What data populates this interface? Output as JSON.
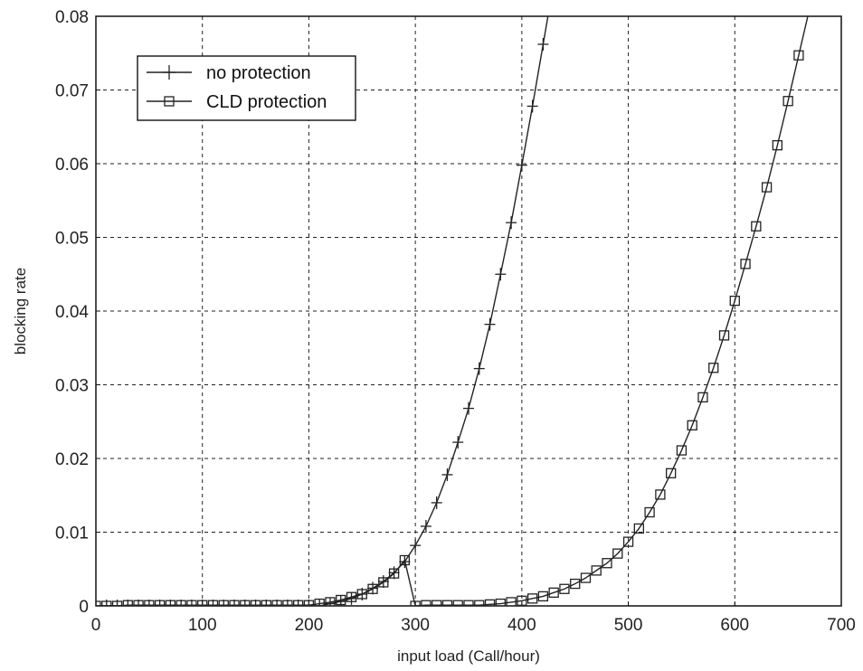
{
  "chart_data": {
    "type": "line",
    "title": "",
    "xlabel": "input load (Call/hour)",
    "ylabel": "blocking rate",
    "xlim": [
      0,
      700
    ],
    "ylim": [
      0,
      0.08
    ],
    "x_ticks": [
      "0",
      "100",
      "200",
      "300",
      "400",
      "500",
      "600",
      "700"
    ],
    "y_ticks": [
      "0",
      "0.01",
      "0.02",
      "0.03",
      "0.04",
      "0.05",
      "0.06",
      "0.07",
      "0.08"
    ],
    "grid": true,
    "legend_position": "top-left",
    "series": [
      {
        "name": "no protection",
        "marker": "plus",
        "x": [
          0,
          10,
          20,
          30,
          40,
          50,
          60,
          70,
          80,
          90,
          100,
          110,
          120,
          130,
          140,
          150,
          160,
          170,
          180,
          190,
          200,
          210,
          220,
          230,
          240,
          250,
          260,
          270,
          280,
          290,
          300,
          310,
          320,
          330,
          340,
          350,
          360,
          370,
          380,
          390,
          400,
          410,
          420
        ],
        "y": [
          0,
          0,
          0,
          0,
          0,
          0,
          0,
          0,
          0,
          0,
          0,
          0,
          0,
          0,
          0,
          0,
          0,
          0,
          0,
          0,
          0,
          0,
          0.0003,
          0.0006,
          0.001,
          0.0016,
          0.0024,
          0.0033,
          0.0045,
          0.006,
          0.0082,
          0.0108,
          0.014,
          0.0178,
          0.0222,
          0.0268,
          0.0322,
          0.0382,
          0.045,
          0.052,
          0.0598,
          0.0678,
          0.0762
        ]
      },
      {
        "name": "CLD protection",
        "marker": "square",
        "x": [
          0,
          10,
          20,
          30,
          40,
          50,
          60,
          70,
          80,
          90,
          100,
          110,
          120,
          130,
          140,
          150,
          160,
          170,
          180,
          190,
          200,
          210,
          220,
          230,
          240,
          250,
          260,
          270,
          280,
          290,
          300,
          310,
          320,
          330,
          340,
          350,
          360,
          370,
          380,
          390,
          400,
          410,
          420,
          430,
          440,
          450,
          460,
          470,
          480,
          490,
          500,
          510,
          520,
          530,
          540,
          550,
          560,
          570,
          580,
          590,
          600,
          610,
          620,
          630,
          640,
          650,
          660
        ],
        "y": [
          0,
          0,
          0,
          0.0001,
          0.0001,
          0.0001,
          0.0001,
          0.0001,
          0.0001,
          0.0001,
          0.0001,
          0.0001,
          0.0001,
          0.0001,
          0.0001,
          0.0001,
          0.0001,
          0.0001,
          0.0001,
          0.0001,
          0.0001,
          0.0003,
          0.0005,
          0.0008,
          0.0012,
          0.0016,
          0.0023,
          0.0032,
          0.0044,
          0.0062,
          0,
          0.0001,
          0.0001,
          0.0001,
          0.0001,
          0.0001,
          0.0001,
          0.0002,
          0.0003,
          0.0005,
          0.0007,
          0.001,
          0.0013,
          0.0018,
          0.0023,
          0.003,
          0.0038,
          0.0048,
          0.0058,
          0.0071,
          0.0087,
          0.0105,
          0.0127,
          0.0151,
          0.018,
          0.0211,
          0.0245,
          0.0283,
          0.0323,
          0.0367,
          0.0414,
          0.0464,
          0.0515,
          0.0568,
          0.0625,
          0.0685,
          0.0747
        ]
      }
    ]
  }
}
